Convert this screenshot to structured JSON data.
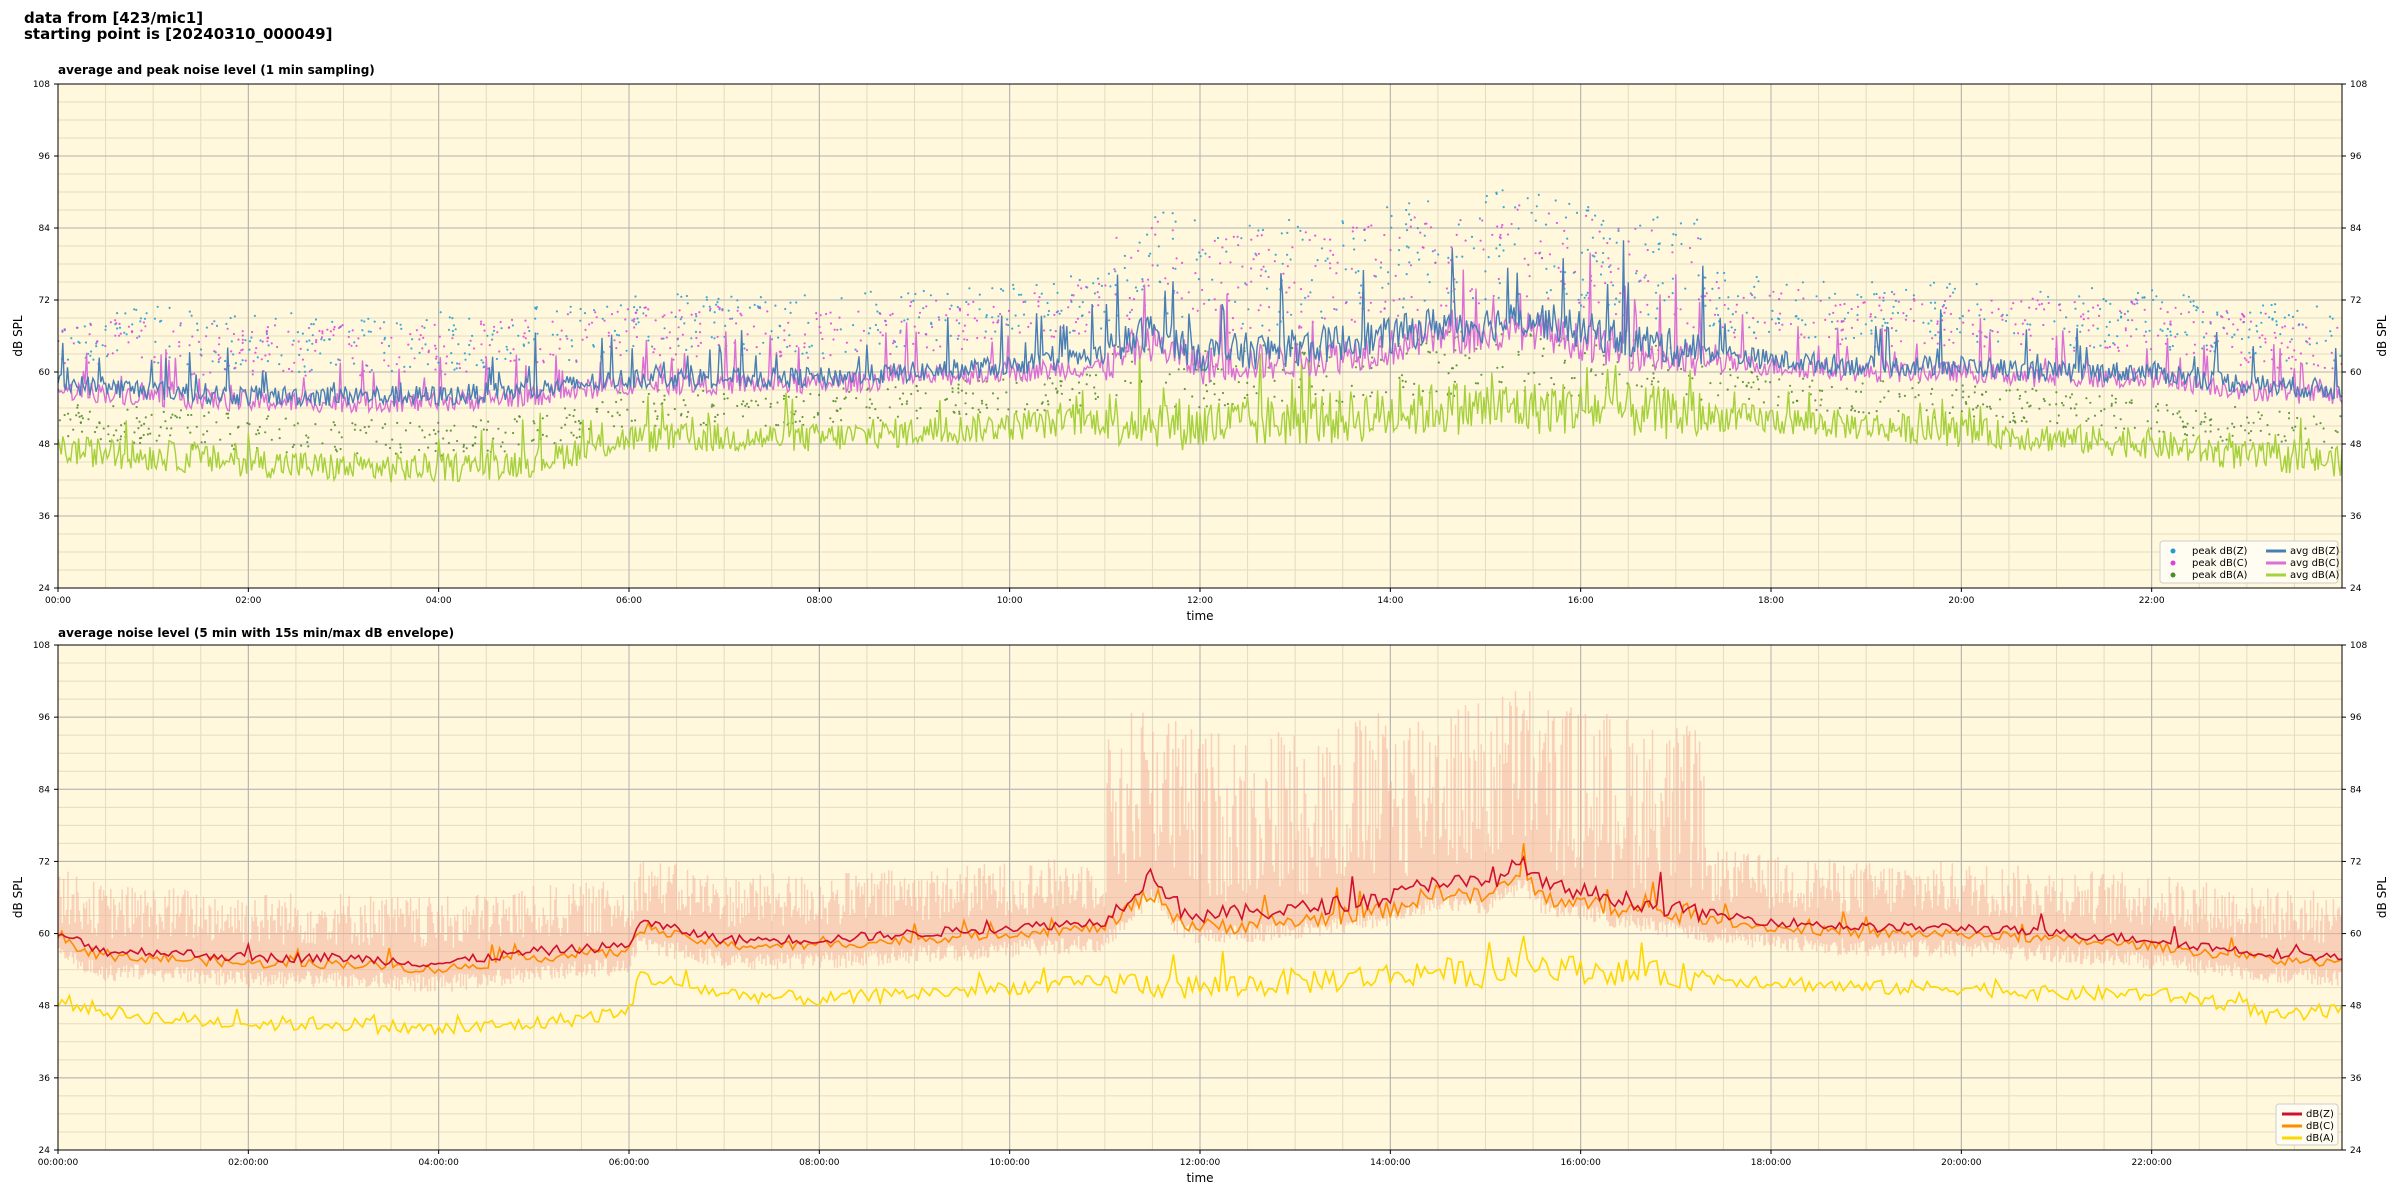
{
  "header": {
    "line1": "data from [423/mic1]",
    "line2": "starting point is [20240310_000049]"
  },
  "colors": {
    "plot_bg": "#fff8dc",
    "grid_major": "#b0b0b0",
    "grid_minor": "#e5dcc0",
    "peak_z": "#1f9bd6",
    "peak_c": "#e040e0",
    "peak_a": "#4c8a2a",
    "avg_z": "#4a7fb5",
    "avg_c": "#da70d6",
    "avg_a": "#a6d13c",
    "z5": "#d0102e",
    "c5": "#ff8c00",
    "a5": "#ffd700",
    "envelope": "#f4b09a"
  },
  "chart_data": [
    {
      "type": "line",
      "title": "average and peak noise level (1 min sampling)",
      "xlabel": "time",
      "ylabel": "dB SPL",
      "x_range_hours": [
        0,
        24
      ],
      "ylim": [
        24,
        108
      ],
      "yticks": [
        "24",
        "36",
        "48",
        "60",
        "72",
        "84",
        "96",
        "108"
      ],
      "xticks": [
        "00:00",
        "02:00",
        "04:00",
        "06:00",
        "08:00",
        "10:00",
        "12:00",
        "14:00",
        "16:00",
        "18:00",
        "20:00",
        "22:00"
      ],
      "grid": true,
      "legend_position": "bottom-right",
      "legend": [
        "peak dB(Z)",
        "peak dB(C)",
        "peak dB(A)",
        "avg dB(Z)",
        "avg dB(C)",
        "avg dB(A)"
      ],
      "series": [
        {
          "name": "avg dB(Z)",
          "kind": "line",
          "hours": [
            0,
            1,
            2,
            3,
            4,
            5,
            6,
            7,
            8,
            9,
            10,
            11,
            11.5,
            12,
            13,
            14,
            14.5,
            15,
            15.5,
            16,
            17,
            18,
            19,
            20,
            21,
            22,
            23,
            24
          ],
          "values": [
            58,
            57,
            56,
            56,
            56,
            57,
            59,
            59,
            59,
            60,
            61,
            63,
            67,
            63,
            64,
            66,
            68,
            68,
            69,
            67,
            64,
            62,
            61,
            61,
            60,
            60,
            58,
            57
          ]
        },
        {
          "name": "avg dB(C)",
          "kind": "line",
          "hours": [
            0,
            1,
            2,
            3,
            4,
            5,
            6,
            7,
            8,
            9,
            10,
            11,
            11.5,
            12,
            13,
            14,
            14.5,
            15,
            15.5,
            16,
            17,
            18,
            19,
            20,
            21,
            22,
            23,
            24
          ],
          "values": [
            57,
            56,
            55,
            55,
            55,
            56,
            58,
            58,
            58,
            59,
            60,
            61,
            65,
            61,
            62,
            64,
            66,
            66,
            67,
            65,
            62,
            61,
            60,
            60,
            59,
            59,
            57,
            56
          ]
        },
        {
          "name": "avg dB(A)",
          "kind": "line",
          "hours": [
            0,
            1,
            2,
            3,
            4,
            5,
            6,
            7,
            8,
            9,
            10,
            11,
            11.5,
            12,
            13,
            14,
            14.5,
            15,
            15.5,
            16,
            17,
            18,
            19,
            20,
            21,
            22,
            23,
            24
          ],
          "values": [
            47,
            46,
            45,
            44,
            44,
            45,
            49,
            49,
            49,
            50,
            51,
            52,
            52,
            51,
            52,
            53,
            54,
            54,
            54,
            54,
            53,
            52,
            51,
            50,
            49,
            48,
            46,
            45
          ]
        },
        {
          "name": "peak dB(Z)",
          "kind": "scatter",
          "offset_above_avg_z": [
            4,
            14
          ]
        },
        {
          "name": "peak dB(C)",
          "kind": "scatter",
          "offset_above_avg_z": [
            3,
            12
          ]
        },
        {
          "name": "peak dB(A)",
          "kind": "scatter",
          "offset_above_avg_a": [
            2,
            8
          ]
        }
      ]
    },
    {
      "type": "line",
      "title": "average noise level (5 min with 15s min/max dB envelope)",
      "xlabel": "time",
      "ylabel": "dB SPL",
      "x_range_hours": [
        0,
        24
      ],
      "ylim": [
        24,
        108
      ],
      "yticks": [
        "24",
        "36",
        "48",
        "60",
        "72",
        "84",
        "96",
        "108"
      ],
      "xticks": [
        "00:00:00",
        "02:00:00",
        "04:00:00",
        "06:00:00",
        "08:00:00",
        "10:00:00",
        "12:00:00",
        "14:00:00",
        "16:00:00",
        "18:00:00",
        "20:00:00",
        "22:00:00"
      ],
      "grid": true,
      "legend_position": "bottom-right",
      "legend": [
        "dB(Z)",
        "dB(C)",
        "dB(A)"
      ],
      "series": [
        {
          "name": "dB(Z)",
          "hours": [
            0,
            0.5,
            1,
            2,
            3,
            4,
            5,
            6,
            6.1,
            7,
            8,
            9,
            10,
            11,
            11.5,
            11.8,
            12,
            13,
            14,
            14.5,
            15,
            15.4,
            15.6,
            16,
            17,
            18,
            19,
            20,
            21,
            22,
            23,
            24
          ],
          "values": [
            60,
            57,
            57,
            56,
            56,
            55,
            57,
            58,
            62,
            59,
            59,
            60,
            61,
            62,
            70,
            64,
            63,
            64,
            66,
            69,
            68,
            72,
            68,
            67,
            64,
            62,
            61,
            61,
            60,
            59,
            57,
            56
          ]
        },
        {
          "name": "dB(C)",
          "hours": [
            0,
            0.5,
            1,
            2,
            3,
            4,
            5,
            6,
            6.1,
            7,
            8,
            9,
            10,
            11,
            11.5,
            11.8,
            12,
            13,
            14,
            14.5,
            15,
            15.4,
            15.6,
            16,
            17,
            18,
            19,
            20,
            21,
            22,
            23,
            24
          ],
          "values": [
            59,
            56,
            56,
            55,
            55,
            54,
            56,
            57,
            61,
            58,
            58,
            59,
            60,
            61,
            67,
            62,
            61,
            62,
            64,
            67,
            66,
            70,
            66,
            65,
            63,
            61,
            60,
            60,
            59,
            58,
            56,
            55
          ]
        },
        {
          "name": "dB(A)",
          "hours": [
            0,
            0.5,
            1,
            2,
            3,
            4,
            5,
            6,
            6.1,
            7,
            8,
            9,
            10,
            11,
            12,
            13,
            14,
            14.5,
            15,
            15.5,
            16,
            17,
            18,
            19,
            20,
            21,
            22,
            23,
            23.2,
            24
          ],
          "values": [
            49,
            47,
            46,
            45,
            45,
            44,
            45,
            47,
            53,
            50,
            49,
            50,
            51,
            52,
            51,
            52,
            53,
            54,
            53,
            55,
            54,
            53,
            52,
            51,
            51,
            50,
            50,
            48,
            46,
            47
          ]
        },
        {
          "name": "min/max envelope",
          "kind": "band",
          "note": "15s min/max"
        }
      ]
    }
  ]
}
